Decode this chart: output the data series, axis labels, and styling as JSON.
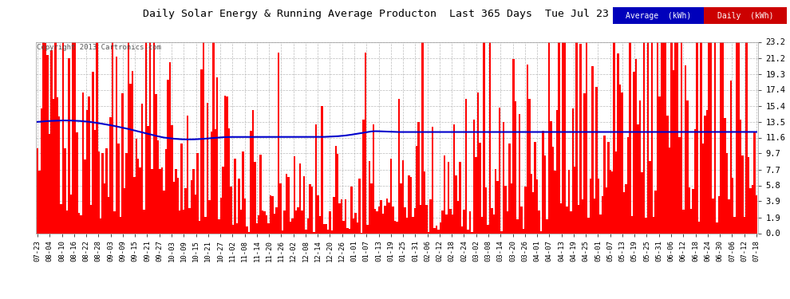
{
  "title": "Daily Solar Energy & Running Average Producton  Last 365 Days  Tue Jul 23 05:54",
  "copyright": "Copyright 2013 Cartronics.com",
  "yticks": [
    0.0,
    1.9,
    3.9,
    5.8,
    7.7,
    9.7,
    11.6,
    13.5,
    15.4,
    17.4,
    19.3,
    21.2,
    23.2
  ],
  "ylim": [
    0.0,
    23.2
  ],
  "bar_color": "#FF0000",
  "avg_line_color": "#0000CC",
  "background_color": "#FFFFFF",
  "plot_bg_color": "#FFFFFF",
  "grid_color": "#BBBBBB",
  "legend_avg_bg": "#0000BB",
  "legend_daily_bg": "#CC0000",
  "legend_avg_text": "Average  (kWh)",
  "legend_daily_text": "Daily  (kWh)",
  "xtick_labels": [
    "07-23",
    "08-04",
    "08-10",
    "08-16",
    "08-22",
    "08-28",
    "09-03",
    "09-09",
    "09-15",
    "09-21",
    "09-27",
    "10-03",
    "10-09",
    "10-15",
    "10-21",
    "10-27",
    "11-02",
    "11-08",
    "11-14",
    "11-20",
    "11-26",
    "12-02",
    "12-08",
    "12-14",
    "12-20",
    "12-26",
    "01-01",
    "01-07",
    "01-13",
    "01-19",
    "01-25",
    "01-31",
    "02-06",
    "02-12",
    "02-18",
    "02-24",
    "03-02",
    "03-08",
    "03-14",
    "03-20",
    "03-26",
    "04-01",
    "04-07",
    "04-13",
    "04-19",
    "04-25",
    "05-01",
    "05-07",
    "05-13",
    "05-19",
    "05-25",
    "05-31",
    "06-06",
    "06-12",
    "06-18",
    "06-24",
    "06-30",
    "07-06",
    "07-12",
    "07-18"
  ],
  "n_bars": 365,
  "avg_curve": [
    13.5,
    13.52,
    13.54,
    13.56,
    13.58,
    13.6,
    13.61,
    13.62,
    13.63,
    13.64,
    13.65,
    13.66,
    13.67,
    13.67,
    13.67,
    13.67,
    13.67,
    13.66,
    13.65,
    13.64,
    13.63,
    13.62,
    13.6,
    13.58,
    13.56,
    13.54,
    13.51,
    13.48,
    13.45,
    13.42,
    13.38,
    13.34,
    13.3,
    13.26,
    13.22,
    13.18,
    13.14,
    13.1,
    13.05,
    13.0,
    12.95,
    12.9,
    12.85,
    12.8,
    12.75,
    12.7,
    12.64,
    12.58,
    12.52,
    12.46,
    12.4,
    12.34,
    12.28,
    12.22,
    12.16,
    12.1,
    12.04,
    11.98,
    11.92,
    11.86,
    11.8,
    11.75,
    11.7,
    11.65,
    11.6,
    11.57,
    11.54,
    11.51,
    11.48,
    11.46,
    11.44,
    11.42,
    11.4,
    11.39,
    11.38,
    11.37,
    11.37,
    11.37,
    11.37,
    11.38,
    11.39,
    11.4,
    11.41,
    11.43,
    11.45,
    11.47,
    11.49,
    11.51,
    11.53,
    11.55,
    11.57,
    11.59,
    11.61,
    11.63,
    11.64,
    11.65,
    11.66,
    11.67,
    11.67,
    11.67,
    11.67,
    11.67,
    11.67,
    11.67,
    11.67,
    11.67,
    11.67,
    11.67,
    11.67,
    11.67,
    11.67,
    11.67,
    11.67,
    11.67,
    11.67,
    11.67,
    11.67,
    11.67,
    11.67,
    11.67,
    11.67,
    11.67,
    11.67,
    11.67,
    11.67,
    11.67,
    11.67,
    11.67,
    11.67,
    11.67,
    11.67,
    11.67,
    11.67,
    11.67,
    11.67,
    11.67,
    11.67,
    11.67,
    11.67,
    11.67,
    11.67,
    11.67,
    11.67,
    11.67,
    11.67,
    11.68,
    11.69,
    11.7,
    11.71,
    11.72,
    11.73,
    11.74,
    11.76,
    11.78,
    11.8,
    11.82,
    11.85,
    11.88,
    11.91,
    11.95,
    11.99,
    12.03,
    12.07,
    12.11,
    12.16,
    12.2,
    12.24,
    12.28,
    12.31,
    12.34,
    12.36,
    12.37,
    12.37,
    12.36,
    12.35,
    12.34,
    12.33,
    12.32,
    12.31,
    12.3,
    12.29,
    12.28,
    12.27,
    12.27,
    12.27,
    12.27,
    12.28,
    12.28,
    12.28,
    12.28,
    12.28,
    12.28,
    12.28,
    12.28,
    12.28,
    12.28,
    12.28,
    12.28,
    12.28,
    12.28,
    12.28,
    12.28,
    12.28,
    12.28,
    12.28,
    12.28,
    12.28,
    12.28,
    12.28,
    12.28,
    12.28,
    12.28,
    12.28,
    12.28,
    12.28,
    12.28,
    12.28,
    12.28,
    12.28,
    12.28,
    12.28,
    12.28,
    12.28,
    12.28,
    12.28,
    12.28,
    12.28,
    12.28,
    12.28,
    12.28,
    12.28,
    12.28,
    12.28,
    12.28,
    12.28,
    12.28,
    12.28,
    12.28,
    12.28,
    12.28,
    12.28,
    12.28,
    12.28,
    12.28,
    12.28,
    12.28,
    12.28,
    12.28,
    12.28,
    12.28,
    12.28,
    12.28,
    12.28,
    12.28,
    12.28,
    12.28,
    12.28,
    12.28,
    12.28,
    12.28,
    12.28,
    12.28,
    12.28,
    12.28,
    12.28,
    12.28,
    12.28,
    12.28,
    12.28,
    12.28,
    12.28,
    12.28,
    12.28,
    12.28,
    12.28,
    12.28,
    12.28,
    12.28,
    12.28,
    12.28,
    12.28,
    12.28,
    12.28,
    12.28,
    12.28,
    12.28,
    12.28,
    12.28,
    12.28,
    12.28,
    12.28,
    12.28,
    12.28,
    12.28,
    12.28,
    12.28,
    12.28,
    12.28,
    12.28,
    12.28,
    12.28,
    12.28,
    12.28,
    12.28,
    12.28,
    12.28,
    12.28,
    12.28,
    12.28,
    12.28,
    12.28,
    12.28,
    12.28,
    12.28,
    12.28,
    12.28,
    12.28,
    12.28,
    12.28,
    12.28,
    12.28,
    12.28,
    12.28,
    12.28,
    12.28,
    12.28,
    12.28,
    12.28,
    12.28,
    12.28,
    12.28,
    12.28,
    12.28,
    12.28,
    12.28,
    12.28,
    12.28,
    12.28,
    12.28,
    12.28,
    12.28,
    12.28,
    12.28,
    12.28,
    12.28,
    12.28,
    12.28,
    12.28,
    12.28,
    12.28,
    12.28,
    12.28,
    12.28,
    12.28,
    12.28,
    12.28,
    12.28,
    12.28,
    12.28,
    12.28,
    12.28,
    12.28,
    12.28,
    12.28,
    12.28
  ]
}
